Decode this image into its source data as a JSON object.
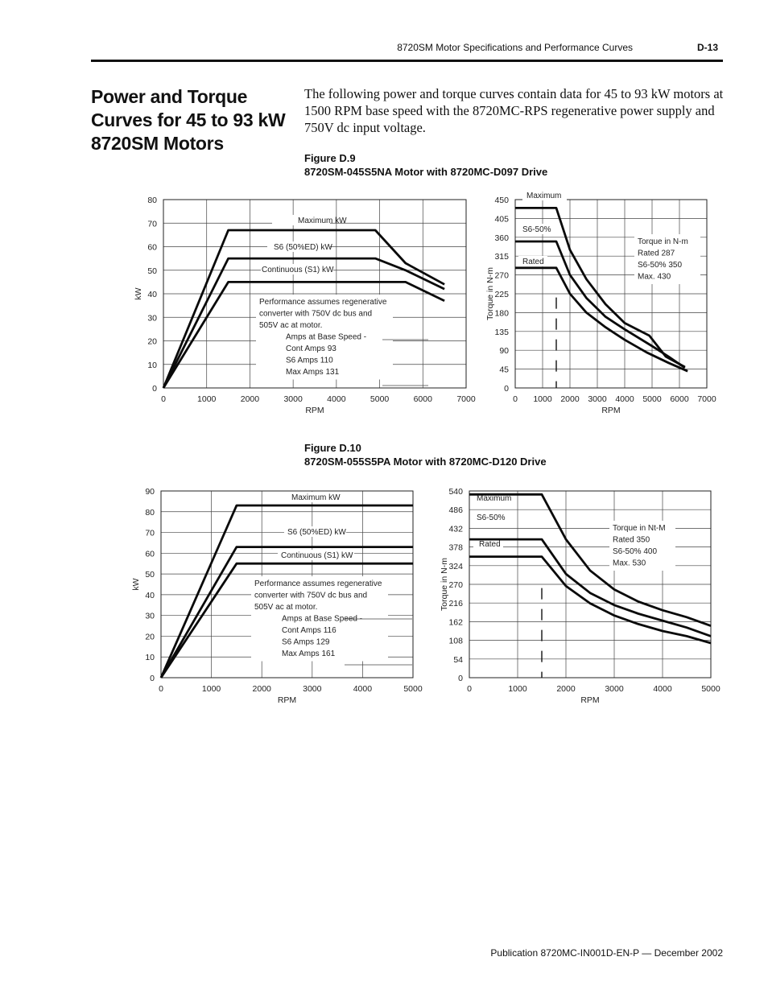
{
  "header": {
    "running_title": "8720SM Motor Specifications and Performance Curves",
    "page_number": "D-13"
  },
  "section": {
    "title": "Power and Torque Curves for 45 to 93 kW 8720SM Motors",
    "intro": "The following power and torque curves contain data for 45 to 93 kW motors at 1500 RPM base speed with the 8720MC-RPS regenerative power supply and 750V dc input voltage."
  },
  "figure9": {
    "label": "Figure D.9",
    "caption": "8720SM-045S5NA Motor with 8720MC-D097 Drive"
  },
  "figure10": {
    "label": "Figure D.10",
    "caption": "8720SM-055S5PA Motor with 8720MC-D120 Drive"
  },
  "footer": {
    "publication": "Publication 8720MC-IN001D-EN-P — December 2002"
  },
  "chart_data": [
    {
      "id": "fig9_power",
      "type": "line",
      "xlabel": "RPM",
      "ylabel": "kW",
      "xlim": [
        0,
        7000
      ],
      "ylim": [
        0,
        80
      ],
      "xticks": [
        0,
        1000,
        2000,
        3000,
        4000,
        5000,
        6000,
        7000
      ],
      "yticks": [
        0,
        10,
        20,
        30,
        40,
        50,
        60,
        70,
        80
      ],
      "grid": true,
      "series": [
        {
          "name": "Maximum kW",
          "x": [
            0,
            1500,
            4900,
            5600,
            6500
          ],
          "y": [
            0,
            67,
            67,
            53,
            44
          ]
        },
        {
          "name": "S6 (50%ED) kW",
          "x": [
            0,
            1500,
            4900,
            5600,
            6500
          ],
          "y": [
            0,
            55,
            55,
            50,
            42
          ]
        },
        {
          "name": "Continuous (S1) kW",
          "x": [
            0,
            1500,
            5600,
            6500
          ],
          "y": [
            0,
            45,
            45,
            37
          ]
        }
      ],
      "annotations": [
        "Performance assumes regenerative",
        "converter with 750V dc bus and",
        "505V ac at motor.",
        "Amps at Base Speed -",
        "Cont Amps     93",
        "S6 Amps      110",
        "Max Amps     131"
      ]
    },
    {
      "id": "fig9_torque",
      "type": "line",
      "xlabel": "RPM",
      "ylabel": "Torque in N-m",
      "xlim": [
        0,
        7000
      ],
      "ylim": [
        0,
        450
      ],
      "xticks": [
        0,
        1000,
        2000,
        3000,
        4000,
        5000,
        6000,
        7000
      ],
      "yticks": [
        0,
        45,
        90,
        135,
        180,
        225,
        270,
        315,
        360,
        405,
        450
      ],
      "grid": true,
      "base_speed_rpm": 1500,
      "series": [
        {
          "name": "Maximum",
          "x": [
            0,
            1500,
            2000,
            2600,
            3300,
            4000,
            4900,
            5500,
            6200
          ],
          "y": [
            430,
            430,
            330,
            260,
            200,
            155,
            125,
            75,
            50
          ]
        },
        {
          "name": "S6-50%",
          "x": [
            0,
            1500,
            2000,
            2600,
            3300,
            4000,
            5000,
            5600,
            6200
          ],
          "y": [
            350,
            350,
            270,
            215,
            170,
            140,
            100,
            75,
            48
          ]
        },
        {
          "name": "Rated",
          "x": [
            0,
            1500,
            2000,
            2600,
            3300,
            4000,
            4800,
            5600,
            6300
          ],
          "y": [
            287,
            287,
            225,
            180,
            145,
            115,
            85,
            60,
            40
          ]
        }
      ],
      "annotations": [
        "Torque in N-m",
        "Rated    287",
        "S6-50% 350",
        "Max.    430"
      ]
    },
    {
      "id": "fig10_power",
      "type": "line",
      "xlabel": "RPM",
      "ylabel": "kW",
      "xlim": [
        0,
        5000
      ],
      "ylim": [
        0,
        90
      ],
      "xticks": [
        0,
        1000,
        2000,
        3000,
        4000,
        5000
      ],
      "yticks": [
        0,
        10,
        20,
        30,
        40,
        50,
        60,
        70,
        80,
        90
      ],
      "grid": true,
      "series": [
        {
          "name": "Maximum kW",
          "x": [
            0,
            1500,
            5000
          ],
          "y": [
            0,
            83,
            83
          ]
        },
        {
          "name": "S6 (50%ED) kW",
          "x": [
            0,
            1500,
            5000
          ],
          "y": [
            0,
            63,
            63
          ]
        },
        {
          "name": "Continuous (S1) kW",
          "x": [
            0,
            1500,
            5000
          ],
          "y": [
            0,
            55,
            55
          ]
        }
      ],
      "annotations": [
        "Performance assumes regenerative",
        "converter with 750V dc bus and",
        "505V ac at motor.",
        "Amps at Base Speed -",
        "Cont Amps     116",
        "S6 Amps       129",
        "Max Amps      161"
      ]
    },
    {
      "id": "fig10_torque",
      "type": "line",
      "xlabel": "RPM",
      "ylabel": "Torque in N-m",
      "xlim": [
        0,
        5000
      ],
      "ylim": [
        0,
        540
      ],
      "xticks": [
        0,
        1000,
        2000,
        3000,
        4000,
        5000
      ],
      "yticks": [
        0,
        54,
        108,
        162,
        216,
        270,
        324,
        378,
        432,
        486,
        540
      ],
      "grid": true,
      "base_speed_rpm": 1500,
      "series": [
        {
          "name": "Maximum",
          "x": [
            0,
            1500,
            2000,
            2500,
            3000,
            3500,
            4000,
            4500,
            5000
          ],
          "y": [
            530,
            530,
            400,
            310,
            255,
            220,
            195,
            175,
            150
          ]
        },
        {
          "name": "S6-50%",
          "x": [
            0,
            1500,
            2000,
            2500,
            3000,
            3500,
            4000,
            4500,
            5000
          ],
          "y": [
            400,
            400,
            300,
            245,
            210,
            185,
            165,
            145,
            120
          ]
        },
        {
          "name": "Rated",
          "x": [
            0,
            1500,
            2000,
            2500,
            3000,
            3500,
            4000,
            4500,
            5000
          ],
          "y": [
            350,
            350,
            265,
            215,
            180,
            155,
            135,
            120,
            100
          ]
        }
      ],
      "annotations": [
        "Torque in Nt-M",
        "Rated    350",
        "S6-50% 400",
        "Max.    530"
      ]
    }
  ]
}
